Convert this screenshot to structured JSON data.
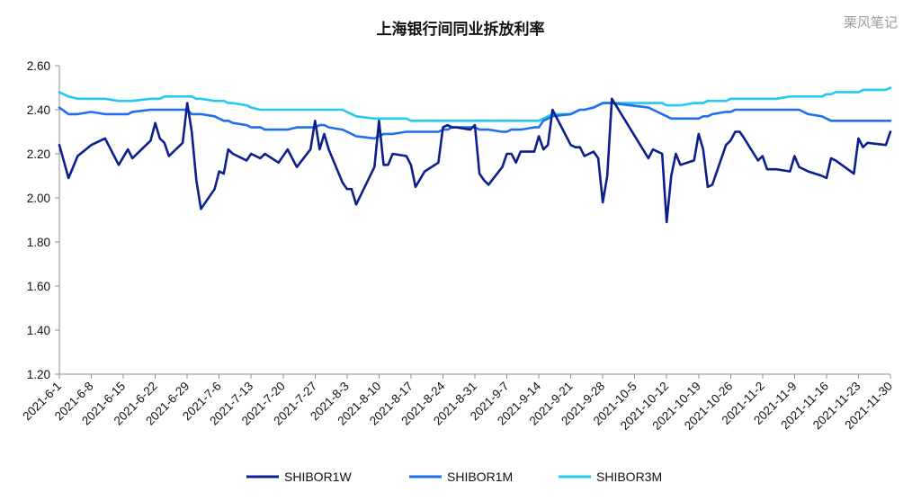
{
  "watermark": "栗风笔记",
  "chart_data": {
    "type": "line",
    "title": "上海银行间同业拆放利率",
    "xlabel": "",
    "ylabel": "",
    "ylim": [
      1.2,
      2.6
    ],
    "yticks": [
      "1.20",
      "1.40",
      "1.60",
      "1.80",
      "2.00",
      "2.20",
      "2.40",
      "2.60"
    ],
    "grid": false,
    "legend_position": "bottom",
    "x_tick_labels": [
      "2021-6-1",
      "2021-6-8",
      "2021-6-15",
      "2021-6-22",
      "2021-6-29",
      "2021-7-6",
      "2021-7-13",
      "2021-7-20",
      "2021-7-27",
      "2021-8-3",
      "2021-8-10",
      "2021-8-17",
      "2021-8-24",
      "2021-8-31",
      "2021-9-7",
      "2021-9-14",
      "2021-9-21",
      "2021-9-28",
      "2021-10-5",
      "2021-10-12",
      "2021-10-19",
      "2021-10-26",
      "2021-11-2",
      "2021-11-9",
      "2021-11-16",
      "2021-11-23",
      "2021-11-30"
    ],
    "x": [
      "2021-6-1",
      "2021-6-3",
      "2021-6-5",
      "2021-6-8",
      "2021-6-11",
      "2021-6-14",
      "2021-6-16",
      "2021-6-17",
      "2021-6-21",
      "2021-6-22",
      "2021-6-23",
      "2021-6-24",
      "2021-6-25",
      "2021-6-28",
      "2021-6-29",
      "2021-6-30",
      "2021-7-1",
      "2021-7-2",
      "2021-7-5",
      "2021-7-6",
      "2021-7-7",
      "2021-7-8",
      "2021-7-9",
      "2021-7-12",
      "2021-7-13",
      "2021-7-15",
      "2021-7-16",
      "2021-7-19",
      "2021-7-21",
      "2021-7-23",
      "2021-7-26",
      "2021-7-27",
      "2021-7-28",
      "2021-7-29",
      "2021-7-30",
      "2021-8-2",
      "2021-8-3",
      "2021-8-4",
      "2021-8-5",
      "2021-8-9",
      "2021-8-10",
      "2021-8-11",
      "2021-8-12",
      "2021-8-13",
      "2021-8-16",
      "2021-8-17",
      "2021-8-18",
      "2021-8-20",
      "2021-8-23",
      "2021-8-24",
      "2021-8-25",
      "2021-8-26",
      "2021-8-27",
      "2021-8-30",
      "2021-8-31",
      "2021-9-1",
      "2021-9-2",
      "2021-9-3",
      "2021-9-6",
      "2021-9-7",
      "2021-9-8",
      "2021-9-9",
      "2021-9-10",
      "2021-9-13",
      "2021-9-14",
      "2021-9-15",
      "2021-9-16",
      "2021-9-17",
      "2021-9-21",
      "2021-9-22",
      "2021-9-23",
      "2021-9-24",
      "2021-9-26",
      "2021-9-27",
      "2021-9-28",
      "2021-9-29",
      "2021-9-30",
      "2021-10-8",
      "2021-10-9",
      "2021-10-11",
      "2021-10-12",
      "2021-10-13",
      "2021-10-14",
      "2021-10-15",
      "2021-10-18",
      "2021-10-19",
      "2021-10-20",
      "2021-10-21",
      "2021-10-22",
      "2021-10-25",
      "2021-10-26",
      "2021-10-27",
      "2021-10-28",
      "2021-10-29",
      "2021-11-1",
      "2021-11-2",
      "2021-11-3",
      "2021-11-5",
      "2021-11-8",
      "2021-11-9",
      "2021-11-10",
      "2021-11-12",
      "2021-11-15",
      "2021-11-16",
      "2021-11-17",
      "2021-11-18",
      "2021-11-22",
      "2021-11-23",
      "2021-11-24",
      "2021-11-25",
      "2021-11-29",
      "2021-11-30"
    ],
    "series": [
      {
        "name": "SHIBOR1W",
        "color": "#0d1f8c",
        "values": [
          2.24,
          2.09,
          2.19,
          2.24,
          2.27,
          2.15,
          2.22,
          2.18,
          2.26,
          2.34,
          2.27,
          2.25,
          2.19,
          2.25,
          2.43,
          2.3,
          2.08,
          1.95,
          2.04,
          2.12,
          2.11,
          2.22,
          2.2,
          2.17,
          2.2,
          2.18,
          2.2,
          2.16,
          2.22,
          2.14,
          2.22,
          2.35,
          2.22,
          2.29,
          2.22,
          2.07,
          2.04,
          2.04,
          1.97,
          2.14,
          2.35,
          2.15,
          2.15,
          2.2,
          2.19,
          2.15,
          2.05,
          2.12,
          2.16,
          2.32,
          2.33,
          2.32,
          2.32,
          2.31,
          2.33,
          2.11,
          2.08,
          2.06,
          2.14,
          2.2,
          2.2,
          2.16,
          2.21,
          2.21,
          2.28,
          2.22,
          2.24,
          2.4,
          2.24,
          2.23,
          2.23,
          2.19,
          2.21,
          2.18,
          1.98,
          2.1,
          2.45,
          2.18,
          2.22,
          2.2,
          1.89,
          2.1,
          2.2,
          2.15,
          2.17,
          2.29,
          2.22,
          2.05,
          2.06,
          2.24,
          2.26,
          2.3,
          2.3,
          2.27,
          2.17,
          2.19,
          2.13,
          2.13,
          2.12,
          2.19,
          2.14,
          2.12,
          2.1,
          2.09,
          2.18,
          2.17,
          2.11,
          2.27,
          2.23,
          2.25,
          2.24,
          2.3
        ]
      },
      {
        "name": "SHIBOR1M",
        "color": "#1f6fef",
        "values": [
          2.41,
          2.38,
          2.38,
          2.39,
          2.38,
          2.38,
          2.38,
          2.39,
          2.4,
          2.4,
          2.4,
          2.4,
          2.4,
          2.4,
          2.4,
          2.38,
          2.38,
          2.38,
          2.37,
          2.36,
          2.35,
          2.35,
          2.34,
          2.33,
          2.32,
          2.32,
          2.31,
          2.31,
          2.31,
          2.32,
          2.32,
          2.32,
          2.33,
          2.33,
          2.32,
          2.31,
          2.3,
          2.29,
          2.28,
          2.27,
          2.28,
          2.29,
          2.29,
          2.29,
          2.3,
          2.3,
          2.3,
          2.3,
          2.3,
          2.31,
          2.31,
          2.32,
          2.32,
          2.32,
          2.32,
          2.31,
          2.31,
          2.31,
          2.3,
          2.3,
          2.31,
          2.31,
          2.31,
          2.32,
          2.32,
          2.35,
          2.36,
          2.37,
          2.38,
          2.39,
          2.4,
          2.4,
          2.41,
          2.42,
          2.43,
          2.43,
          2.43,
          2.41,
          2.4,
          2.38,
          2.37,
          2.36,
          2.36,
          2.36,
          2.36,
          2.36,
          2.37,
          2.37,
          2.38,
          2.39,
          2.39,
          2.4,
          2.4,
          2.4,
          2.4,
          2.4,
          2.4,
          2.4,
          2.4,
          2.4,
          2.4,
          2.38,
          2.37,
          2.36,
          2.35,
          2.35,
          2.35,
          2.35,
          2.35,
          2.35,
          2.35,
          2.35
        ]
      },
      {
        "name": "SHIBOR3M",
        "color": "#22c9f2",
        "values": [
          2.48,
          2.46,
          2.45,
          2.45,
          2.45,
          2.44,
          2.44,
          2.44,
          2.45,
          2.45,
          2.45,
          2.46,
          2.46,
          2.46,
          2.46,
          2.46,
          2.45,
          2.45,
          2.44,
          2.44,
          2.44,
          2.43,
          2.43,
          2.42,
          2.41,
          2.4,
          2.4,
          2.4,
          2.4,
          2.4,
          2.4,
          2.4,
          2.4,
          2.4,
          2.4,
          2.4,
          2.39,
          2.38,
          2.37,
          2.36,
          2.36,
          2.36,
          2.36,
          2.36,
          2.36,
          2.35,
          2.35,
          2.35,
          2.35,
          2.35,
          2.35,
          2.35,
          2.35,
          2.35,
          2.35,
          2.35,
          2.35,
          2.35,
          2.35,
          2.35,
          2.35,
          2.35,
          2.35,
          2.35,
          2.35,
          2.36,
          2.37,
          2.38,
          2.38,
          2.39,
          2.4,
          2.4,
          2.41,
          2.42,
          2.43,
          2.43,
          2.43,
          2.43,
          2.43,
          2.43,
          2.42,
          2.42,
          2.42,
          2.42,
          2.43,
          2.43,
          2.43,
          2.44,
          2.44,
          2.44,
          2.45,
          2.45,
          2.45,
          2.45,
          2.45,
          2.45,
          2.45,
          2.45,
          2.46,
          2.46,
          2.46,
          2.46,
          2.46,
          2.47,
          2.47,
          2.48,
          2.48,
          2.48,
          2.49,
          2.49,
          2.49,
          2.5
        ]
      }
    ]
  }
}
